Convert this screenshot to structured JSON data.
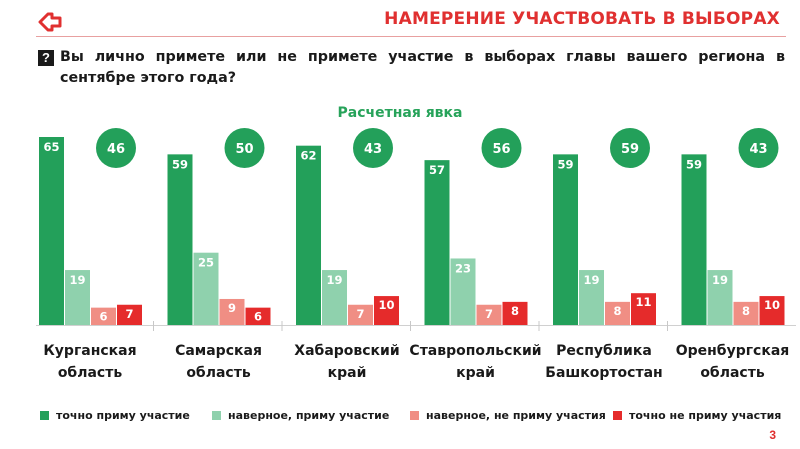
{
  "header": {
    "title": "НАМЕРЕНИЕ УЧАСТВОВАТЬ В ВЫБОРАХ",
    "logo_icon": "red-arrow-logo-icon",
    "accent_color": "#e03030"
  },
  "question": {
    "icon": "question-mark-icon",
    "icon_text": "?",
    "text": "Вы лично примете или не примете участие в выборах главы вашего региона в сентябре этого года?"
  },
  "footer": {
    "page_number": "3"
  },
  "chart_data": {
    "type": "bar",
    "subtitle": "Расчетная явка",
    "categories": [
      [
        "Курганская",
        "область"
      ],
      [
        "Самарская",
        "область"
      ],
      [
        "Хабаровский",
        "край"
      ],
      [
        "Ставропольский",
        "край"
      ],
      [
        "Республика",
        "Башкортостан"
      ],
      [
        "Оренбургская",
        "область"
      ]
    ],
    "series": [
      {
        "name": "точно приму участие",
        "color": "#23a05a",
        "values": [
          65,
          59,
          62,
          57,
          59,
          59
        ]
      },
      {
        "name": "наверное, приму участие",
        "color": "#8fd1ad",
        "values": [
          19,
          25,
          19,
          23,
          19,
          19
        ]
      },
      {
        "name": "наверное, не приму участия",
        "color": "#f08e84",
        "values": [
          6,
          9,
          7,
          7,
          8,
          8
        ]
      },
      {
        "name": "точно не приму участия",
        "color": "#e52b2b",
        "values": [
          7,
          6,
          10,
          8,
          11,
          10
        ]
      }
    ],
    "turnout": {
      "color": "#23a05a",
      "values": [
        46,
        50,
        43,
        56,
        59,
        43
      ]
    },
    "ylim": [
      0,
      70
    ],
    "legend_position": "bottom",
    "grid": false,
    "data_labels": true
  }
}
